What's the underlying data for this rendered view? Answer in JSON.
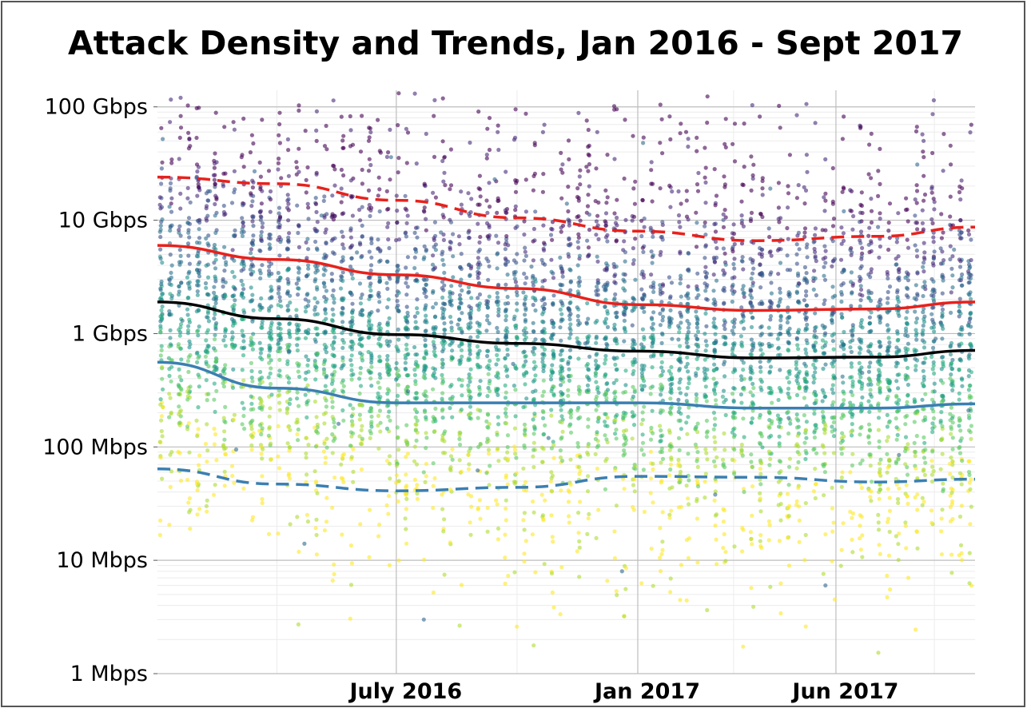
{
  "chart_data": {
    "type": "scatter",
    "title": "Attack Density and Trends, Jan 2016 - Sept 2017",
    "x_range": [
      "2016-01-01",
      "2017-09-15"
    ],
    "x_tick_labels": [
      "July 2016",
      "Jan 2017",
      "Jun 2017"
    ],
    "x_tick_dates": [
      "2016-07-01",
      "2017-01-01",
      "2017-06-01"
    ],
    "y_scale": "log",
    "y_unit": "Mbps",
    "y_range": [
      1,
      140000
    ],
    "y_tick_labels": [
      "1 Mbps",
      "10 Mbps",
      "100 Mbps",
      "1 Gbps",
      "10 Gbps",
      "100 Gbps"
    ],
    "y_tick_values": [
      1,
      10,
      100,
      1000,
      10000,
      100000
    ],
    "grid": true,
    "point_colormap": "viridis (dark purple = high bandwidth, yellow = low bandwidth)",
    "trend_lines": [
      {
        "color": "#e8211c",
        "style": "dashed",
        "x": [
          "2016-01-01",
          "2016-04-01",
          "2016-07-01",
          "2016-10-01",
          "2017-01-01",
          "2017-04-01",
          "2017-07-01",
          "2017-09-15"
        ],
        "y": [
          24000,
          21000,
          15000,
          10500,
          8000,
          6600,
          7200,
          8700
        ]
      },
      {
        "color": "#e8211c",
        "style": "solid",
        "x": [
          "2016-01-01",
          "2016-04-01",
          "2016-07-01",
          "2016-10-01",
          "2017-01-01",
          "2017-04-01",
          "2017-07-01",
          "2017-09-15"
        ],
        "y": [
          6000,
          4500,
          3300,
          2500,
          1800,
          1600,
          1650,
          1900
        ]
      },
      {
        "color": "#000000",
        "style": "solid",
        "x": [
          "2016-01-01",
          "2016-04-01",
          "2016-07-01",
          "2016-10-01",
          "2017-01-01",
          "2017-04-01",
          "2017-07-01",
          "2017-09-15"
        ],
        "y": [
          1900,
          1350,
          980,
          820,
          700,
          610,
          620,
          710
        ]
      },
      {
        "color": "#3b7fb2",
        "style": "solid",
        "x": [
          "2016-01-01",
          "2016-04-01",
          "2016-07-01",
          "2016-10-01",
          "2017-01-01",
          "2017-04-01",
          "2017-07-01",
          "2017-09-15"
        ],
        "y": [
          560,
          330,
          245,
          245,
          245,
          220,
          220,
          240
        ]
      },
      {
        "color": "#3b7fb2",
        "style": "dashed",
        "x": [
          "2016-01-01",
          "2016-04-01",
          "2016-07-01",
          "2016-10-01",
          "2017-01-01",
          "2017-04-01",
          "2017-07-01",
          "2017-09-15"
        ],
        "y": [
          64,
          47,
          41,
          44,
          55,
          54,
          49,
          52
        ]
      }
    ],
    "points": [
      {
        "x": "2016-01-05",
        "y": 52000
      },
      {
        "x": "2016-01-12",
        "y": 9000
      },
      {
        "x": "2016-01-20",
        "y": 1300
      },
      {
        "x": "2016-02-02",
        "y": 3200
      },
      {
        "x": "2016-02-10",
        "y": 18000
      },
      {
        "x": "2016-02-18",
        "y": 430
      },
      {
        "x": "2016-03-01",
        "y": 95
      },
      {
        "x": "2016-03-15",
        "y": 27000
      },
      {
        "x": "2016-03-28",
        "y": 2100
      },
      {
        "x": "2016-04-10",
        "y": 700
      },
      {
        "x": "2016-04-22",
        "y": 14
      },
      {
        "x": "2016-05-05",
        "y": 11000
      },
      {
        "x": "2016-05-18",
        "y": 160
      },
      {
        "x": "2016-06-01",
        "y": 5200
      },
      {
        "x": "2016-06-14",
        "y": 980
      },
      {
        "x": "2016-06-27",
        "y": 36000
      },
      {
        "x": "2016-07-10",
        "y": 310
      },
      {
        "x": "2016-07-22",
        "y": 3
      },
      {
        "x": "2016-08-04",
        "y": 7800
      },
      {
        "x": "2016-08-17",
        "y": 1200
      },
      {
        "x": "2016-09-01",
        "y": 62
      },
      {
        "x": "2016-09-14",
        "y": 23000
      },
      {
        "x": "2016-09-28",
        "y": 540
      },
      {
        "x": "2016-10-12",
        "y": 3900
      },
      {
        "x": "2016-10-25",
        "y": 120
      },
      {
        "x": "2016-11-08",
        "y": 14000
      },
      {
        "x": "2016-11-22",
        "y": 820
      },
      {
        "x": "2016-12-06",
        "y": 2600
      },
      {
        "x": "2016-12-20",
        "y": 8
      },
      {
        "x": "2017-01-05",
        "y": 48000
      },
      {
        "x": "2017-01-18",
        "y": 1500
      },
      {
        "x": "2017-02-01",
        "y": 260
      },
      {
        "x": "2017-02-15",
        "y": 9500
      },
      {
        "x": "2017-03-01",
        "y": 38
      },
      {
        "x": "2017-03-15",
        "y": 4100
      },
      {
        "x": "2017-03-29",
        "y": 710
      },
      {
        "x": "2017-04-12",
        "y": 19000
      },
      {
        "x": "2017-04-26",
        "y": 180
      },
      {
        "x": "2017-05-10",
        "y": 2900
      },
      {
        "x": "2017-05-24",
        "y": 6
      },
      {
        "x": "2017-06-07",
        "y": 12000
      },
      {
        "x": "2017-06-21",
        "y": 450
      },
      {
        "x": "2017-07-05",
        "y": 1800
      },
      {
        "x": "2017-07-19",
        "y": 85
      },
      {
        "x": "2017-08-02",
        "y": 31000
      },
      {
        "x": "2017-08-16",
        "y": 900
      },
      {
        "x": "2017-08-30",
        "y": 5500
      },
      {
        "x": "2017-09-10",
        "y": 210
      }
    ]
  }
}
